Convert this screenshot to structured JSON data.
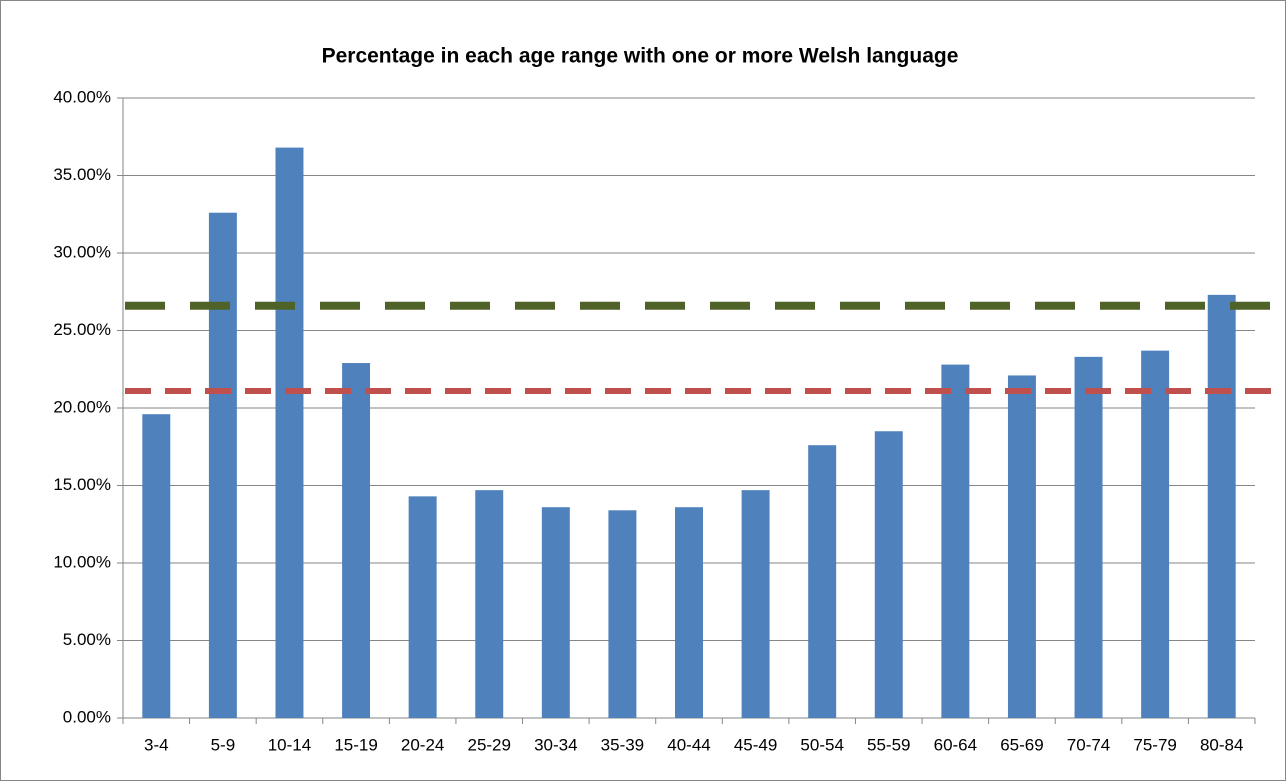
{
  "chart_data": {
    "type": "bar",
    "title": "Percentage in each age range with one or more Welsh language",
    "categories": [
      "3-4",
      "5-9",
      "10-14",
      "15-19",
      "20-24",
      "25-29",
      "30-34",
      "35-39",
      "40-44",
      "45-49",
      "50-54",
      "55-59",
      "60-64",
      "65-69",
      "70-74",
      "75-79",
      "80-84"
    ],
    "values": [
      19.6,
      32.6,
      36.8,
      22.9,
      14.3,
      14.7,
      13.6,
      13.4,
      13.6,
      14.7,
      17.6,
      18.5,
      22.8,
      22.1,
      23.3,
      23.7,
      27.3
    ],
    "color": "#4f81bd",
    "ylim": [
      0,
      40
    ],
    "yticks": [
      {
        "value": 0,
        "label": "0.00%"
      },
      {
        "value": 5,
        "label": "5.00%"
      },
      {
        "value": 10,
        "label": "10.00%"
      },
      {
        "value": 15,
        "label": "15.00%"
      },
      {
        "value": 20,
        "label": "20.00%"
      },
      {
        "value": 25,
        "label": "25.00%"
      },
      {
        "value": 30,
        "label": "30.00%"
      },
      {
        "value": 35,
        "label": "35.00%"
      },
      {
        "value": 40,
        "label": "40.00%"
      }
    ],
    "grid": true,
    "reference_lines": [
      {
        "value": 26.6,
        "color": "#4f6228"
      },
      {
        "value": 21.1,
        "color": "#c0504d"
      }
    ]
  }
}
